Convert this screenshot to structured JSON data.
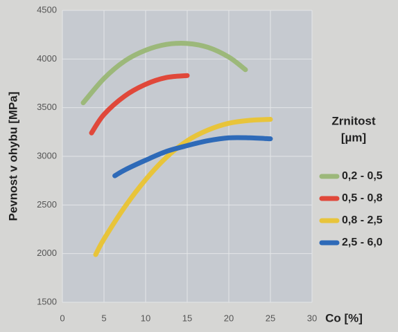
{
  "chart_data": {
    "type": "line",
    "y_label": "Pevnost v ohybu [MPa]",
    "x_label": "Co [%]",
    "legend_title": [
      "Zrnitost",
      "[µm]"
    ],
    "xlim": [
      0,
      30
    ],
    "xticks": [
      0,
      5,
      10,
      15,
      20,
      25,
      30
    ],
    "ylim": [
      1500,
      4500
    ],
    "yticks": [
      1500,
      2000,
      2500,
      3000,
      3500,
      4000,
      4500
    ],
    "grid": true,
    "series": [
      {
        "name": "0,2 - 0,5",
        "color": "#9cb87a",
        "x": [
          2.5,
          5,
          7.5,
          10,
          12.5,
          15,
          17.5,
          20,
          22
        ],
        "values": [
          3550,
          3800,
          3980,
          4090,
          4150,
          4160,
          4120,
          4020,
          3890
        ]
      },
      {
        "name": "0,5 - 0,8",
        "color": "#e0483a",
        "x": [
          3.5,
          5,
          7.5,
          10,
          12.5,
          15
        ],
        "values": [
          3240,
          3430,
          3620,
          3740,
          3810,
          3830
        ]
      },
      {
        "name": "0,8 - 2,5",
        "color": "#e8c43a",
        "x": [
          4,
          5,
          7.5,
          10,
          12.5,
          15,
          17.5,
          20,
          22.5,
          25
        ],
        "values": [
          1990,
          2150,
          2480,
          2760,
          2990,
          3160,
          3270,
          3340,
          3370,
          3380
        ]
      },
      {
        "name": "2,5 - 6,0",
        "color": "#2e6ab8",
        "x": [
          6.3,
          7.5,
          10,
          12.5,
          15,
          17.5,
          20,
          22.5,
          25
        ],
        "values": [
          2800,
          2860,
          2960,
          3050,
          3110,
          3160,
          3190,
          3190,
          3180
        ]
      }
    ]
  }
}
